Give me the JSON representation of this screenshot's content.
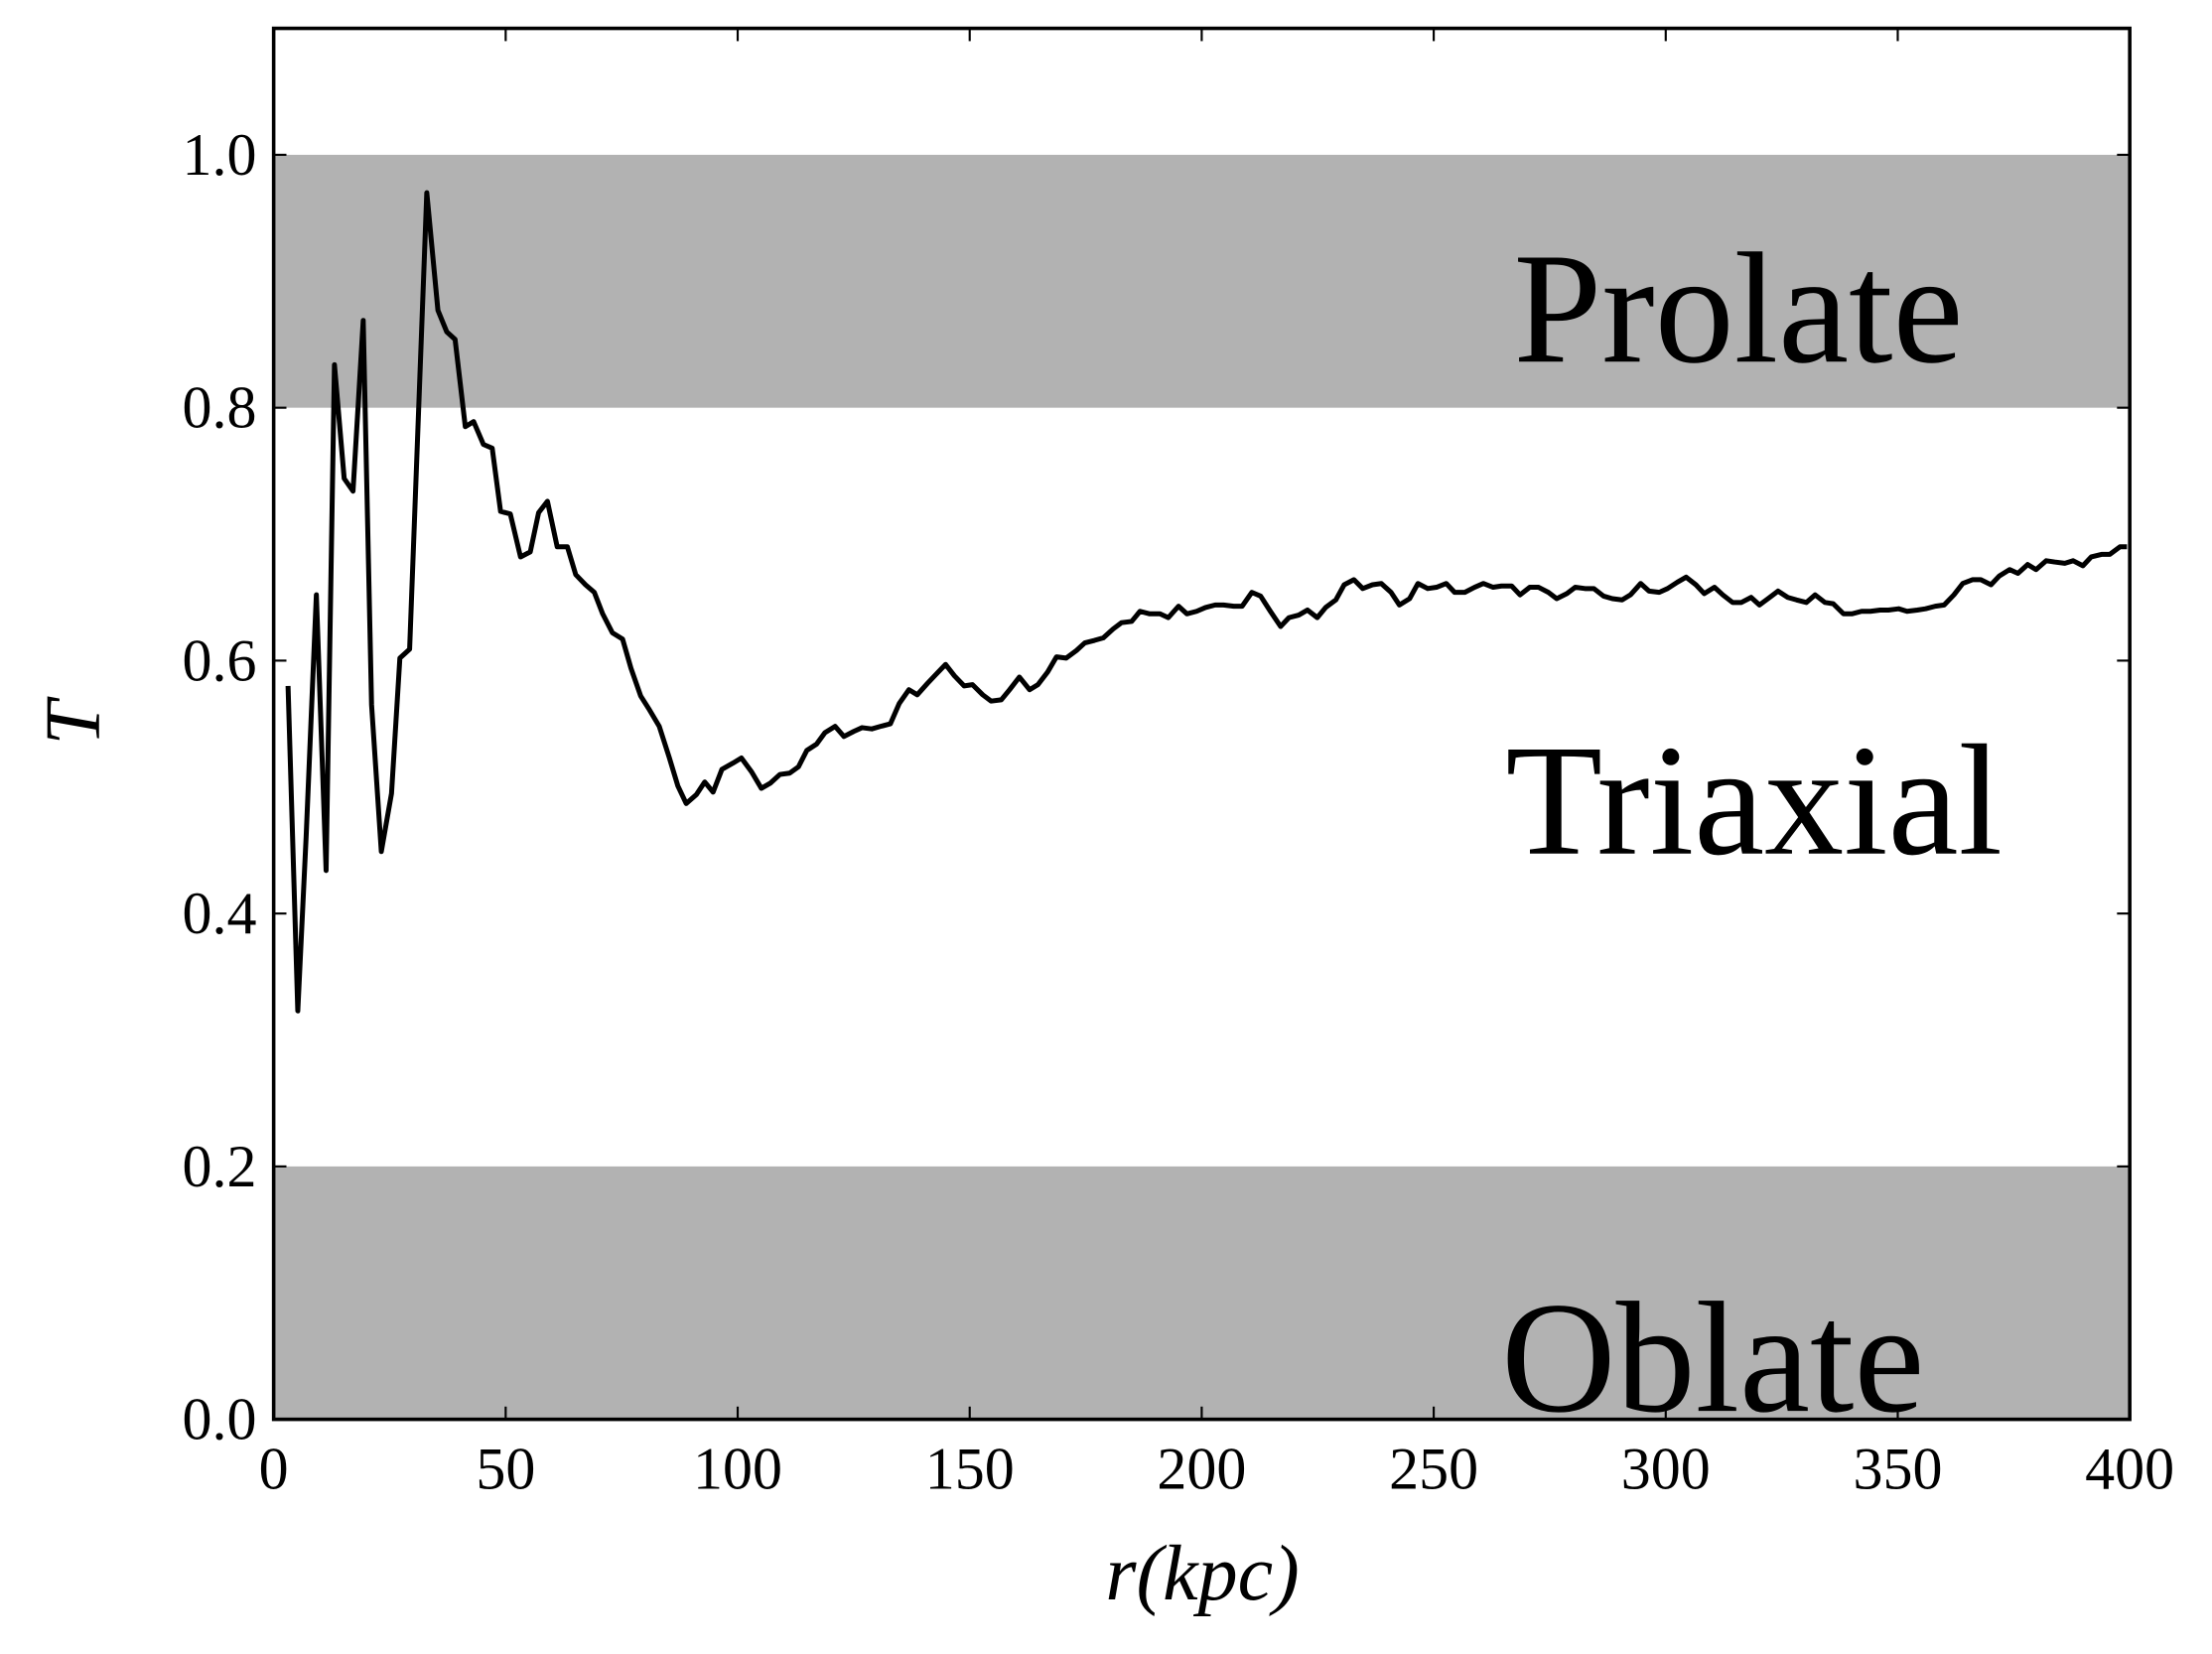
{
  "chart_data": {
    "type": "line",
    "xlabel": "r(kpc)",
    "ylabel": "T",
    "xlim": [
      0,
      400
    ],
    "ylim": [
      0,
      1.1
    ],
    "xticks": [
      0,
      50,
      100,
      150,
      200,
      250,
      300,
      350,
      400
    ],
    "yticks": [
      {
        "value": 0,
        "label": "0.0"
      },
      0.2,
      0.4,
      0.6,
      0.8,
      {
        "value": 1,
        "label": "1.0"
      }
    ],
    "bands": [
      {
        "label": "Prolate",
        "range": [
          0.8,
          1.0
        ],
        "color": "#b2b2b2"
      },
      {
        "label": "Oblate",
        "range": [
          0,
          0.2
        ],
        "color": "#b2b2b2"
      }
    ],
    "annotations": [
      "Triaxial"
    ],
    "x": [
      3.1,
      5.2,
      7,
      9.2,
      11.3,
      13.1,
      15.2,
      17.1,
      19.3,
      21.1,
      23.2,
      25.4,
      27.2,
      29.3,
      33,
      35.4,
      37.3,
      39.1,
      41.3,
      43.1,
      45.2,
      47.1,
      48.9,
      51,
      53.2,
      55.3,
      57.1,
      59,
      61.1,
      63.3,
      65.1,
      67.2,
      69.1,
      70.9,
      73,
      75.2,
      77,
      79.1,
      81,
      83.1,
      85.2,
      87.1,
      88.9,
      91.1,
      92.9,
      94.7,
      96.6,
      99,
      100.8,
      103,
      105.1,
      107,
      109.1,
      111.2,
      113.1,
      114.9,
      117,
      118.8,
      121,
      122.9,
      125,
      126.8,
      128.9,
      130.8,
      132.9,
      134.8,
      136.9,
      138.7,
      140.9,
      142.7,
      144.8,
      146.7,
      148.8,
      150.6,
      152.8,
      154.6,
      156.8,
      158.6,
      160.7,
      162.9,
      164.7,
      166.8,
      168.7,
      170.8,
      173,
      174.8,
      176.9,
      178.8,
      180.9,
      182.7,
      184.9,
      186.7,
      188.8,
      191,
      192.8,
      195,
      196.8,
      198.9,
      200.8,
      202.9,
      204.7,
      206.9,
      208.7,
      210.8,
      212.7,
      214.8,
      217,
      218.8,
      220.9,
      222.8,
      224.9,
      226.7,
      228.9,
      230.7,
      232.8,
      234.7,
      236.8,
      238.7,
      240.8,
      242.6,
      244.8,
      246.6,
      248.7,
      250.6,
      252.7,
      254.5,
      256.7,
      258.8,
      260.7,
      262.8,
      264.6,
      266.8,
      268.6,
      270.7,
      272.6,
      274.7,
      276.5,
      278.7,
      280.5,
      282.6,
      284.5,
      286.6,
      288.5,
      290.6,
      292.4,
      294.6,
      296.4,
      298.6,
      300.4,
      302.5,
      304.4,
      306.5,
      308.3,
      310.5,
      312.3,
      314.4,
      316.3,
      318.4,
      320.2,
      322.4,
      324.2,
      326.3,
      328.2,
      330.3,
      332.2,
      334.3,
      336.1,
      338.3,
      340.1,
      342.2,
      344.1,
      346.2,
      348,
      350.2,
      352,
      354.2,
      356,
      358.1,
      360,
      362.1,
      364,
      366.1,
      367.9,
      370.1,
      371.9,
      374.1,
      375.9,
      378,
      379.8,
      382,
      383.8,
      386,
      387.8,
      389.9,
      391.7,
      393.9,
      395.7,
      397.9,
      399.4
    ],
    "series": [
      {
        "color": "#000000",
        "values": [
          0.58,
          0.323,
          0.461,
          0.652,
          0.434,
          0.834,
          0.744,
          0.734,
          0.869,
          0.565,
          0.449,
          0.495,
          0.602,
          0.609,
          0.97,
          0.877,
          0.86,
          0.854,
          0.785,
          0.789,
          0.771,
          0.768,
          0.718,
          0.716,
          0.682,
          0.686,
          0.717,
          0.726,
          0.69,
          0.69,
          0.668,
          0.66,
          0.654,
          0.637,
          0.622,
          0.617,
          0.594,
          0.572,
          0.561,
          0.548,
          0.524,
          0.501,
          0.487,
          0.494,
          0.504,
          0.496,
          0.514,
          0.519,
          0.523,
          0.512,
          0.499,
          0.503,
          0.51,
          0.511,
          0.516,
          0.529,
          0.534,
          0.543,
          0.548,
          0.54,
          0.544,
          0.547,
          0.546,
          0.548,
          0.55,
          0.566,
          0.577,
          0.573,
          0.582,
          0.589,
          0.597,
          0.588,
          0.58,
          0.581,
          0.573,
          0.568,
          0.569,
          0.577,
          0.587,
          0.577,
          0.581,
          0.591,
          0.603,
          0.602,
          0.608,
          0.614,
          0.616,
          0.618,
          0.625,
          0.63,
          0.631,
          0.639,
          0.637,
          0.637,
          0.634,
          0.643,
          0.637,
          0.639,
          0.642,
          0.644,
          0.644,
          0.643,
          0.643,
          0.654,
          0.651,
          0.639,
          0.627,
          0.634,
          0.636,
          0.64,
          0.634,
          0.642,
          0.648,
          0.66,
          0.664,
          0.657,
          0.66,
          0.661,
          0.654,
          0.644,
          0.649,
          0.661,
          0.657,
          0.658,
          0.661,
          0.654,
          0.654,
          0.658,
          0.661,
          0.658,
          0.659,
          0.659,
          0.652,
          0.658,
          0.658,
          0.654,
          0.649,
          0.653,
          0.658,
          0.657,
          0.657,
          0.651,
          0.649,
          0.648,
          0.652,
          0.661,
          0.655,
          0.654,
          0.657,
          0.662,
          0.666,
          0.66,
          0.653,
          0.658,
          0.652,
          0.646,
          0.646,
          0.65,
          0.644,
          0.65,
          0.655,
          0.65,
          0.648,
          0.646,
          0.652,
          0.646,
          0.645,
          0.637,
          0.637,
          0.639,
          0.639,
          0.64,
          0.64,
          0.641,
          0.639,
          0.64,
          0.641,
          0.643,
          0.644,
          0.652,
          0.661,
          0.664,
          0.664,
          0.66,
          0.667,
          0.672,
          0.669,
          0.676,
          0.672,
          0.679,
          0.678,
          0.677,
          0.679,
          0.675,
          0.682,
          0.684,
          0.684,
          0.69,
          0.69
        ]
      }
    ]
  }
}
